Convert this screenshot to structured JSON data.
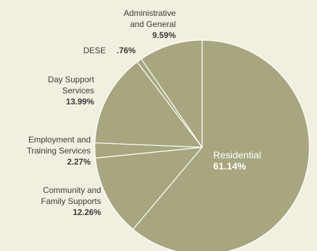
{
  "chart_data": {
    "type": "pie",
    "title": "",
    "colors": {
      "slice": "#a8a67f",
      "stroke": "#ffffff",
      "label": "#3a3a3a",
      "inside_label": "#ffffff"
    },
    "start_angle_deg": 0,
    "direction": "clockwise",
    "slices": [
      {
        "name": "Residential",
        "value": 61.14,
        "value_label": "61.14%"
      },
      {
        "name": "Community and Family Supports",
        "name_lines": [
          "Community and",
          "Family  Supports"
        ],
        "value": 12.26,
        "value_label": "12.26%"
      },
      {
        "name": "Employment and Training Services",
        "name_lines": [
          "Employment and",
          "Training Services"
        ],
        "value": 2.27,
        "value_label": "2.27%"
      },
      {
        "name": "Day Support Services",
        "name_lines": [
          "Day Support",
          "Services"
        ],
        "value": 13.99,
        "value_label": "13.99%"
      },
      {
        "name": "DESE",
        "name_lines": [
          "DESE"
        ],
        "value": 0.76,
        "value_label": ".76%"
      },
      {
        "name": "Administrative and General",
        "name_lines": [
          "Administrative",
          "and General"
        ],
        "value": 9.59,
        "value_label": "9.59%"
      }
    ]
  }
}
